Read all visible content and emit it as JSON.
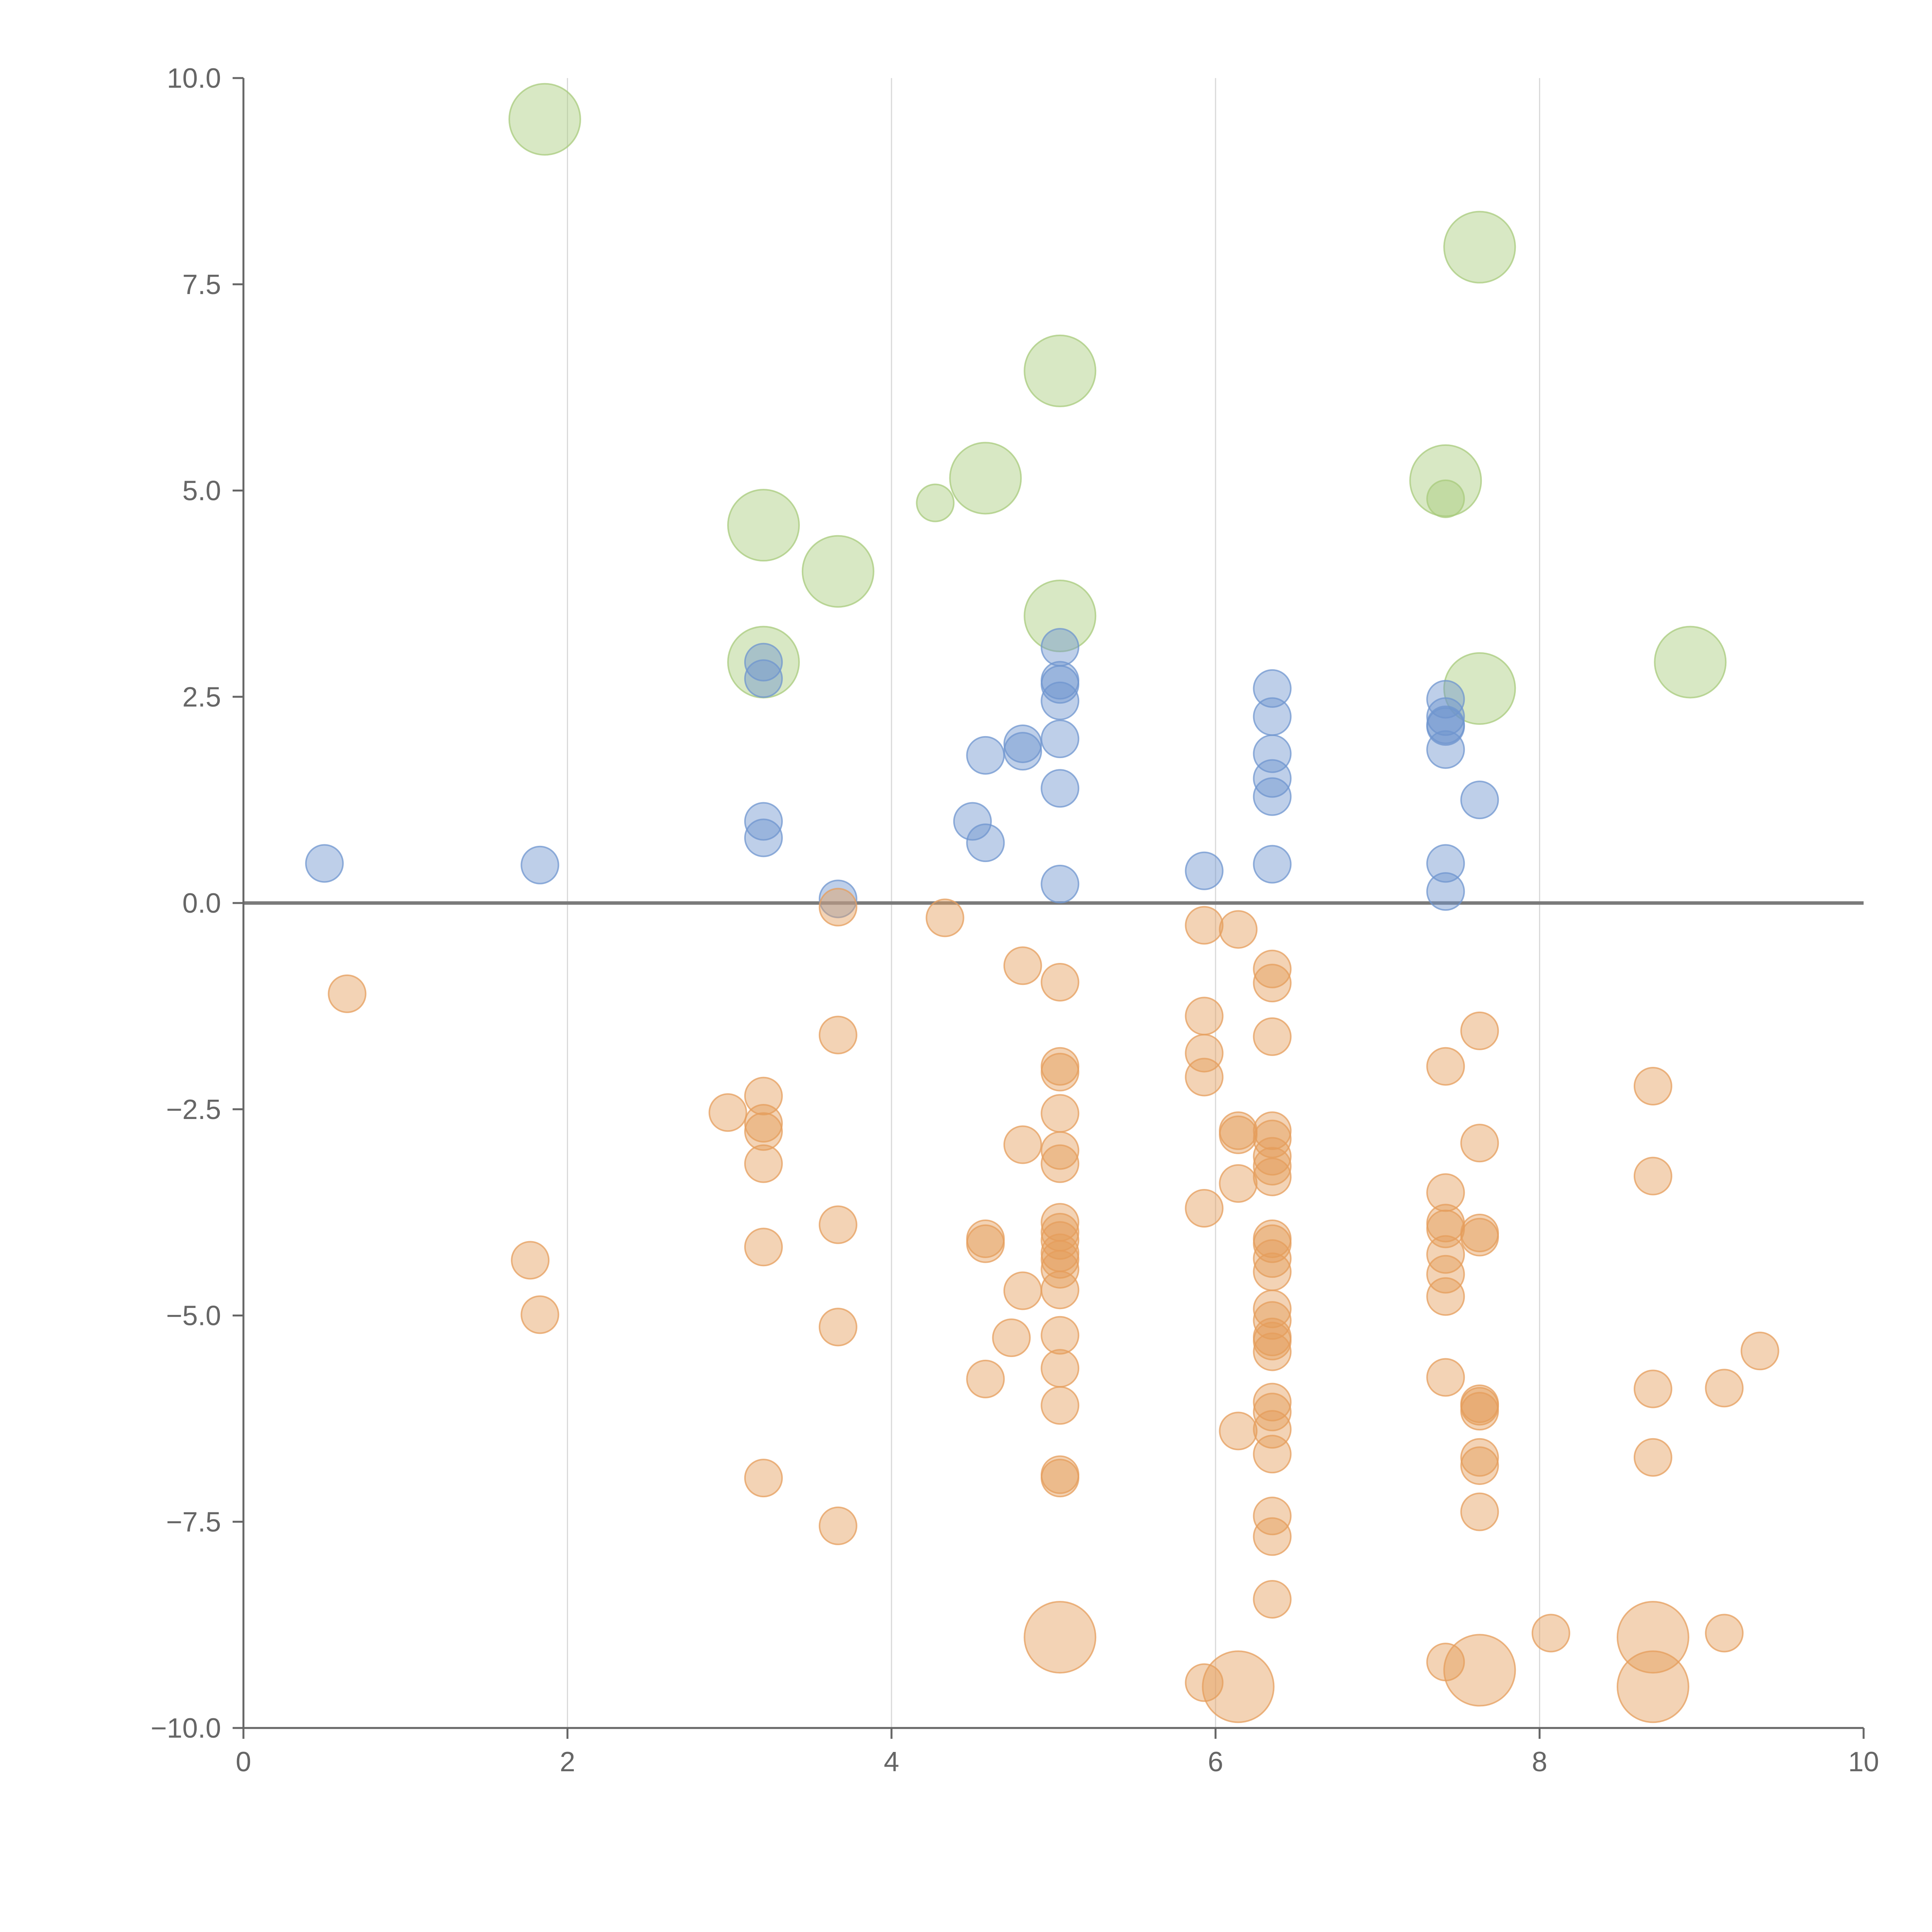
{
  "chart_data": {
    "type": "scatter",
    "title": "",
    "xlabel": "",
    "ylabel": "",
    "xlim": [
      0,
      10
    ],
    "ylim": [
      -10,
      10
    ],
    "x_ticks": [
      "0",
      "2",
      "4",
      "6",
      "8",
      "10"
    ],
    "y_ticks": [
      "−10.0",
      "−7.5",
      "−5.0",
      "−2.5",
      "0.0",
      "2.5",
      "5.0",
      "7.5",
      "10.0"
    ],
    "x_tick_values": [
      0,
      2,
      4,
      6,
      8,
      10
    ],
    "y_tick_values": [
      -10,
      -7.5,
      -5,
      -2.5,
      0,
      2.5,
      5,
      7.5,
      10
    ],
    "grid": "vertical lines at x ticks",
    "zero_line": true,
    "legend": "none",
    "colors": {
      "green": "#a8cb7c",
      "blue": "#6f95cf",
      "orange": "#e59d5c"
    },
    "series": [
      {
        "color_key": "green",
        "points": [
          {
            "x": 1.86,
            "y": 9.5,
            "size": "large"
          },
          {
            "x": 7.63,
            "y": 7.95,
            "size": "large"
          },
          {
            "x": 5.04,
            "y": 6.45,
            "size": "large"
          },
          {
            "x": 4.58,
            "y": 5.15,
            "size": "large"
          },
          {
            "x": 4.27,
            "y": 4.85,
            "size": "small"
          },
          {
            "x": 7.42,
            "y": 5.12,
            "size": "large"
          },
          {
            "x": 7.42,
            "y": 4.9,
            "size": "small"
          },
          {
            "x": 3.21,
            "y": 4.58,
            "size": "large"
          },
          {
            "x": 3.67,
            "y": 4.02,
            "size": "large"
          },
          {
            "x": 5.04,
            "y": 3.48,
            "size": "large"
          },
          {
            "x": 3.21,
            "y": 2.92,
            "size": "large"
          },
          {
            "x": 7.63,
            "y": 2.6,
            "size": "large"
          },
          {
            "x": 8.93,
            "y": 2.92,
            "size": "large"
          }
        ]
      },
      {
        "color_key": "blue",
        "points": [
          {
            "x": 0.5,
            "y": 0.48
          },
          {
            "x": 1.83,
            "y": 0.46
          },
          {
            "x": 3.21,
            "y": 2.92
          },
          {
            "x": 3.21,
            "y": 2.72
          },
          {
            "x": 3.21,
            "y": 0.99
          },
          {
            "x": 3.21,
            "y": 0.79
          },
          {
            "x": 3.67,
            "y": 0.05
          },
          {
            "x": 4.5,
            "y": 0.99
          },
          {
            "x": 4.58,
            "y": 0.73
          },
          {
            "x": 4.58,
            "y": 1.79
          },
          {
            "x": 4.81,
            "y": 1.93
          },
          {
            "x": 4.81,
            "y": 1.84
          },
          {
            "x": 5.04,
            "y": 3.1
          },
          {
            "x": 5.04,
            "y": 2.7
          },
          {
            "x": 5.04,
            "y": 2.65
          },
          {
            "x": 5.04,
            "y": 2.45
          },
          {
            "x": 5.04,
            "y": 1.99
          },
          {
            "x": 5.04,
            "y": 1.39
          },
          {
            "x": 5.04,
            "y": 0.23
          },
          {
            "x": 5.93,
            "y": 0.39
          },
          {
            "x": 6.35,
            "y": 2.6
          },
          {
            "x": 6.35,
            "y": 2.26
          },
          {
            "x": 6.35,
            "y": 1.81
          },
          {
            "x": 6.35,
            "y": 1.51
          },
          {
            "x": 6.35,
            "y": 1.29
          },
          {
            "x": 6.35,
            "y": 0.47
          },
          {
            "x": 7.42,
            "y": 2.47
          },
          {
            "x": 7.42,
            "y": 2.26
          },
          {
            "x": 7.42,
            "y": 2.16
          },
          {
            "x": 7.42,
            "y": 2.14
          },
          {
            "x": 7.42,
            "y": 1.86
          },
          {
            "x": 7.42,
            "y": 0.48
          },
          {
            "x": 7.42,
            "y": 0.14
          },
          {
            "x": 7.63,
            "y": 1.25
          }
        ]
      },
      {
        "color_key": "orange",
        "points": [
          {
            "x": 0.64,
            "y": -1.1
          },
          {
            "x": 1.77,
            "y": -4.33
          },
          {
            "x": 1.83,
            "y": -4.99
          },
          {
            "x": 2.99,
            "y": -2.54
          },
          {
            "x": 3.21,
            "y": -2.34
          },
          {
            "x": 3.21,
            "y": -2.67
          },
          {
            "x": 3.21,
            "y": -2.77
          },
          {
            "x": 3.21,
            "y": -3.16
          },
          {
            "x": 3.21,
            "y": -4.17
          },
          {
            "x": 3.21,
            "y": -6.97
          },
          {
            "x": 3.67,
            "y": -0.05
          },
          {
            "x": 3.67,
            "y": -1.6
          },
          {
            "x": 3.67,
            "y": -3.9
          },
          {
            "x": 3.67,
            "y": -5.14
          },
          {
            "x": 3.67,
            "y": -7.55
          },
          {
            "x": 4.33,
            "y": -0.18
          },
          {
            "x": 4.58,
            "y": -4.07
          },
          {
            "x": 4.58,
            "y": -4.13
          },
          {
            "x": 4.58,
            "y": -5.77
          },
          {
            "x": 4.74,
            "y": -5.27
          },
          {
            "x": 4.81,
            "y": -0.76
          },
          {
            "x": 4.81,
            "y": -2.93
          },
          {
            "x": 4.81,
            "y": -4.7
          },
          {
            "x": 5.04,
            "y": -0.96
          },
          {
            "x": 5.04,
            "y": -1.98
          },
          {
            "x": 5.04,
            "y": -2.05
          },
          {
            "x": 5.04,
            "y": -2.55
          },
          {
            "x": 5.04,
            "y": -3.0
          },
          {
            "x": 5.04,
            "y": -3.16
          },
          {
            "x": 5.04,
            "y": -3.87
          },
          {
            "x": 5.04,
            "y": -3.99
          },
          {
            "x": 5.04,
            "y": -4.09
          },
          {
            "x": 5.04,
            "y": -4.24
          },
          {
            "x": 5.04,
            "y": -4.32
          },
          {
            "x": 5.04,
            "y": -4.44
          },
          {
            "x": 5.04,
            "y": -4.69
          },
          {
            "x": 5.04,
            "y": -5.24
          },
          {
            "x": 5.04,
            "y": -5.64
          },
          {
            "x": 5.04,
            "y": -6.09
          },
          {
            "x": 5.04,
            "y": -6.93
          },
          {
            "x": 5.04,
            "y": -6.97
          },
          {
            "x": 5.04,
            "y": -8.9,
            "size": "large"
          },
          {
            "x": 5.93,
            "y": -0.27
          },
          {
            "x": 5.93,
            "y": -1.37
          },
          {
            "x": 5.93,
            "y": -1.82
          },
          {
            "x": 5.93,
            "y": -2.11
          },
          {
            "x": 5.93,
            "y": -3.7
          },
          {
            "x": 5.93,
            "y": -9.45
          },
          {
            "x": 6.14,
            "y": -0.32
          },
          {
            "x": 6.14,
            "y": -2.76
          },
          {
            "x": 6.14,
            "y": -2.81
          },
          {
            "x": 6.14,
            "y": -3.4
          },
          {
            "x": 6.14,
            "y": -6.4
          },
          {
            "x": 6.14,
            "y": -9.5,
            "size": "large"
          },
          {
            "x": 6.35,
            "y": -0.8
          },
          {
            "x": 6.35,
            "y": -0.97
          },
          {
            "x": 6.35,
            "y": -1.62
          },
          {
            "x": 6.35,
            "y": -2.76
          },
          {
            "x": 6.35,
            "y": -2.86
          },
          {
            "x": 6.35,
            "y": -3.07
          },
          {
            "x": 6.35,
            "y": -3.19
          },
          {
            "x": 6.35,
            "y": -3.32
          },
          {
            "x": 6.35,
            "y": -4.07
          },
          {
            "x": 6.35,
            "y": -4.13
          },
          {
            "x": 6.35,
            "y": -4.31
          },
          {
            "x": 6.35,
            "y": -4.47
          },
          {
            "x": 6.35,
            "y": -4.92
          },
          {
            "x": 6.35,
            "y": -5.06
          },
          {
            "x": 6.35,
            "y": -5.26
          },
          {
            "x": 6.35,
            "y": -5.31
          },
          {
            "x": 6.35,
            "y": -5.44
          },
          {
            "x": 6.35,
            "y": -6.05
          },
          {
            "x": 6.35,
            "y": -6.17
          },
          {
            "x": 6.35,
            "y": -6.38
          },
          {
            "x": 6.35,
            "y": -6.68
          },
          {
            "x": 6.35,
            "y": -7.43
          },
          {
            "x": 6.35,
            "y": -7.68
          },
          {
            "x": 6.35,
            "y": -8.44
          },
          {
            "x": 7.42,
            "y": -1.98
          },
          {
            "x": 7.42,
            "y": -3.51
          },
          {
            "x": 7.42,
            "y": -3.88
          },
          {
            "x": 7.42,
            "y": -3.95
          },
          {
            "x": 7.42,
            "y": -4.26
          },
          {
            "x": 7.42,
            "y": -4.5
          },
          {
            "x": 7.42,
            "y": -4.77
          },
          {
            "x": 7.42,
            "y": -5.75
          },
          {
            "x": 7.42,
            "y": -9.2
          },
          {
            "x": 7.63,
            "y": -1.55
          },
          {
            "x": 7.63,
            "y": -2.91
          },
          {
            "x": 7.63,
            "y": -4.0
          },
          {
            "x": 7.63,
            "y": -4.05
          },
          {
            "x": 7.63,
            "y": -6.07
          },
          {
            "x": 7.63,
            "y": -6.1
          },
          {
            "x": 7.63,
            "y": -6.16
          },
          {
            "x": 7.63,
            "y": -6.72
          },
          {
            "x": 7.63,
            "y": -6.82
          },
          {
            "x": 7.63,
            "y": -7.38
          },
          {
            "x": 7.63,
            "y": -9.3,
            "size": "large"
          },
          {
            "x": 8.07,
            "y": -8.85
          },
          {
            "x": 8.7,
            "y": -2.22
          },
          {
            "x": 8.7,
            "y": -3.31
          },
          {
            "x": 8.7,
            "y": -5.89
          },
          {
            "x": 8.7,
            "y": -6.72
          },
          {
            "x": 8.7,
            "y": -8.9,
            "size": "large"
          },
          {
            "x": 8.7,
            "y": -9.5,
            "size": "large"
          },
          {
            "x": 9.14,
            "y": -5.88
          },
          {
            "x": 9.14,
            "y": -8.85
          },
          {
            "x": 9.36,
            "y": -5.43
          }
        ]
      }
    ]
  }
}
